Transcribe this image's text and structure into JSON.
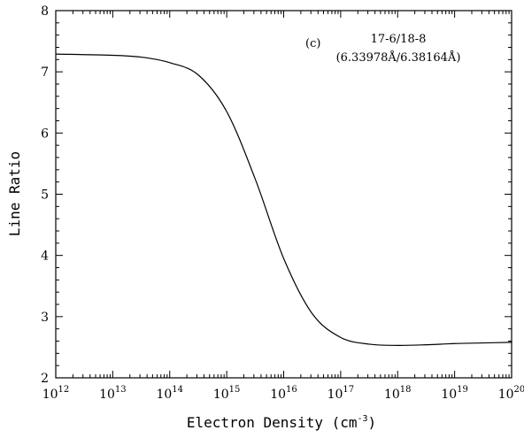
{
  "chart_data": {
    "type": "line",
    "xlabel": "Electron Density (cm",
    "xlabel_exp": "-3",
    "xlabel_close": ")",
    "ylabel": "Line Ratio",
    "xscale": "log",
    "xlim": [
      1000000000000.0,
      1e+20
    ],
    "ylim": [
      2,
      8
    ],
    "x_ticks": [
      {
        "base": "10",
        "exp": "12"
      },
      {
        "base": "10",
        "exp": "13"
      },
      {
        "base": "10",
        "exp": "14"
      },
      {
        "base": "10",
        "exp": "15"
      },
      {
        "base": "10",
        "exp": "16"
      },
      {
        "base": "10",
        "exp": "17"
      },
      {
        "base": "10",
        "exp": "18"
      },
      {
        "base": "10",
        "exp": "19"
      },
      {
        "base": "10",
        "exp": "20"
      }
    ],
    "y_ticks": [
      "2",
      "3",
      "4",
      "5",
      "6",
      "7",
      "8"
    ],
    "annotations": {
      "panel": "(c)",
      "ratio": "17-6/18-8",
      "wavelengths": "(6.33978Å/6.38164Å)"
    },
    "series": [
      {
        "color": "#000000",
        "x": [
          1000000000000.0,
          10000000000000.0,
          31600000000000.0,
          100000000000000.0,
          316000000000000.0,
          1000000000000000.0,
          3160000000000000.0,
          1e+16,
          3.16e+16,
          1e+17,
          3.16e+17,
          1e+18,
          3.16e+18,
          1e+19,
          3.16e+19,
          1e+20
        ],
        "y": [
          7.29,
          7.27,
          7.24,
          7.15,
          6.95,
          6.35,
          5.25,
          3.95,
          3.05,
          2.66,
          2.55,
          2.53,
          2.54,
          2.56,
          2.57,
          2.58
        ]
      }
    ]
  }
}
